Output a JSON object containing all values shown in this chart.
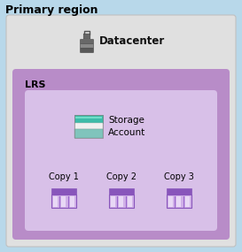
{
  "title": "Primary region",
  "title_fontsize": 9,
  "bg_color": "#b8d8ea",
  "datacenter_box_color": "#e0e0e0",
  "datacenter_box_edge": "#c0c0c0",
  "datacenter_label": "Datacenter",
  "datacenter_label_fontsize": 8.5,
  "lrs_box_color_outer": "#b88cc8",
  "lrs_box_color_inner": "#d8c0e8",
  "lrs_label": "LRS",
  "lrs_label_fontsize": 8,
  "storage_label": "Storage\nAccount",
  "storage_label_fontsize": 7.5,
  "copy_labels": [
    "Copy 1",
    "Copy 2",
    "Copy 3"
  ],
  "copy_label_fontsize": 7,
  "copy_icon_top_color": "#8855bb",
  "copy_icon_body_color": "#d0b0e8",
  "copy_icon_stripe_color": "#9966cc",
  "copy_icon_stripe_light": "#e8d8f5",
  "storage_icon_top_color": "#3dbba8",
  "storage_icon_mid_color": "#ffffff",
  "storage_icon_bot_color": "#80c4bc",
  "storage_icon_outline": "#888888"
}
